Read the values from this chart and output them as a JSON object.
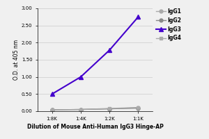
{
  "x_labels": [
    "1:8K",
    "1:4K",
    "1:2K",
    "1:1K"
  ],
  "x_values": [
    1,
    2,
    3,
    4
  ],
  "series": [
    {
      "label": "IgG1",
      "color": "#aaaaaa",
      "marker": "o",
      "linewidth": 1.0,
      "markersize": 3.5,
      "values": [
        0.04,
        0.05,
        0.07,
        0.1
      ]
    },
    {
      "label": "IgG2",
      "color": "#888888",
      "marker": "o",
      "linewidth": 1.0,
      "markersize": 3.5,
      "values": [
        0.04,
        0.05,
        0.07,
        0.09
      ]
    },
    {
      "label": "IgG3",
      "color": "#4400cc",
      "marker": "^",
      "linewidth": 1.5,
      "markersize": 4.5,
      "values": [
        0.5,
        1.0,
        1.78,
        2.75
      ]
    },
    {
      "label": "IgG4",
      "color": "#aaaaaa",
      "marker": "s",
      "linewidth": 1.0,
      "markersize": 3.5,
      "values": [
        0.04,
        0.05,
        0.08,
        0.11
      ]
    }
  ],
  "ylabel": "O.D. at 405 nm",
  "xlabel": "Dilution of Mouse Anti-Human IgG3 Hinge-AP",
  "ylim": [
    0.0,
    3.0
  ],
  "yticks": [
    0.0,
    0.5,
    1.0,
    1.5,
    2.0,
    2.5,
    3.0
  ],
  "background_color": "#f0f0f0",
  "plot_bg_color": "#f0f0f0",
  "legend_fontsize": 5.5,
  "xlabel_fontsize": 5.5,
  "ylabel_fontsize": 5.5,
  "tick_fontsize": 5.0,
  "grid_color": "#cccccc",
  "grid_linewidth": 0.5
}
